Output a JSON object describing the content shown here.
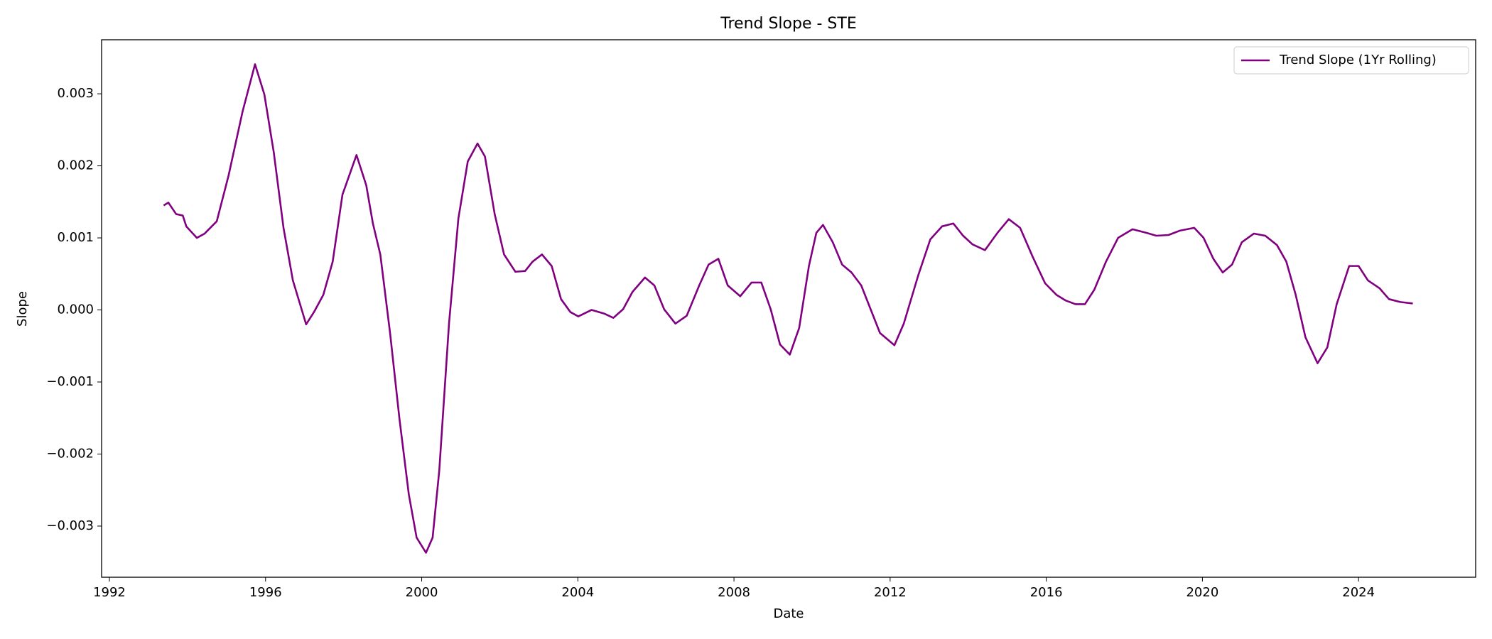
{
  "chart_data": {
    "type": "line",
    "title": "Trend Slope - STE",
    "x_label": "Date",
    "y_label": "Slope",
    "x": [
      1993.39,
      1993.51,
      1993.71,
      1993.88,
      1993.97,
      1994.24,
      1994.44,
      1994.75,
      1995.05,
      1995.41,
      1995.73,
      1995.97,
      1996.21,
      1996.46,
      1996.7,
      1997.04,
      1997.24,
      1997.48,
      1997.72,
      1997.97,
      1998.33,
      1998.58,
      1998.75,
      1998.94,
      1999.19,
      1999.43,
      1999.67,
      1999.87,
      2000.11,
      2000.28,
      2000.45,
      2000.7,
      2000.94,
      2001.18,
      2001.43,
      2001.62,
      2001.87,
      2002.11,
      2002.4,
      2002.65,
      2002.84,
      2003.08,
      2003.33,
      2003.57,
      2003.81,
      2004.01,
      2004.35,
      2004.67,
      2004.91,
      2005.16,
      2005.4,
      2005.72,
      2005.96,
      2006.21,
      2006.5,
      2006.79,
      2007.11,
      2007.35,
      2007.6,
      2007.84,
      2008.16,
      2008.45,
      2008.7,
      2008.94,
      2009.18,
      2009.43,
      2009.67,
      2009.92,
      2010.11,
      2010.28,
      2010.53,
      2010.77,
      2011.01,
      2011.26,
      2011.5,
      2011.74,
      2012.11,
      2012.35,
      2012.72,
      2013.03,
      2013.33,
      2013.62,
      2013.87,
      2014.11,
      2014.43,
      2014.75,
      2015.04,
      2015.33,
      2015.65,
      2015.97,
      2016.26,
      2016.5,
      2016.75,
      2016.99,
      2017.23,
      2017.53,
      2017.84,
      2018.21,
      2018.57,
      2018.82,
      2019.13,
      2019.42,
      2019.79,
      2020.03,
      2020.28,
      2020.52,
      2020.76,
      2021.01,
      2021.32,
      2021.61,
      2021.91,
      2022.15,
      2022.39,
      2022.64,
      2022.95,
      2023.2,
      2023.44,
      2023.76,
      2024.0,
      2024.24,
      2024.54,
      2024.78,
      2025.07,
      2025.39
    ],
    "series": [
      {
        "name": "Trend Slope (1Yr Rolling)",
        "color": "#800080",
        "values": [
          0.00145,
          0.00149,
          0.00133,
          0.00131,
          0.00116,
          0.001,
          0.00106,
          0.00123,
          0.00186,
          0.00275,
          0.00341,
          0.00299,
          0.00219,
          0.00114,
          0.00041,
          -0.0002,
          -3e-05,
          0.00021,
          0.00067,
          0.0016,
          0.00215,
          0.00173,
          0.0012,
          0.00077,
          -0.00032,
          -0.00151,
          -0.00256,
          -0.00316,
          -0.00337,
          -0.00316,
          -0.00223,
          -0.00019,
          0.00127,
          0.00206,
          0.00231,
          0.00213,
          0.00133,
          0.00077,
          0.00053,
          0.00054,
          0.00067,
          0.00077,
          0.00061,
          0.00015,
          -3e-05,
          -9e-05,
          0.0,
          -5e-05,
          -0.00011,
          1e-05,
          0.00025,
          0.00045,
          0.00034,
          1e-05,
          -0.00019,
          -8e-05,
          0.00034,
          0.00063,
          0.00071,
          0.00034,
          0.00019,
          0.00038,
          0.00038,
          1e-05,
          -0.00048,
          -0.00062,
          -0.00025,
          0.00061,
          0.00107,
          0.00118,
          0.00094,
          0.00063,
          0.00052,
          0.00034,
          1e-05,
          -0.00032,
          -0.00049,
          -0.00019,
          0.00048,
          0.00098,
          0.00116,
          0.0012,
          0.00103,
          0.00091,
          0.00083,
          0.00107,
          0.00126,
          0.00114,
          0.00074,
          0.00037,
          0.00021,
          0.00013,
          8e-05,
          8e-05,
          0.00028,
          0.00067,
          0.001,
          0.00112,
          0.00107,
          0.00103,
          0.00104,
          0.0011,
          0.00114,
          0.001,
          0.00071,
          0.00052,
          0.00063,
          0.00094,
          0.00106,
          0.00103,
          0.0009,
          0.00067,
          0.00021,
          -0.00038,
          -0.00074,
          -0.00052,
          8e-05,
          0.00061,
          0.00061,
          0.00041,
          0.0003,
          0.00015,
          0.00011,
          9e-05
        ]
      }
    ],
    "xlim": [
      1991.8,
      2027.0
    ],
    "xticks": [
      1992,
      1996,
      2000,
      2004,
      2008,
      2012,
      2016,
      2020,
      2024
    ],
    "ylim": [
      -0.00371,
      0.00375
    ],
    "yticks": [
      {
        "value": -0.003,
        "label": "−0.003"
      },
      {
        "value": -0.002,
        "label": "−0.002"
      },
      {
        "value": -0.001,
        "label": "−0.001"
      },
      {
        "value": 0,
        "label": "0.000"
      },
      0.001,
      0.002,
      0.003
    ],
    "grid": false,
    "legend": "upper right"
  }
}
